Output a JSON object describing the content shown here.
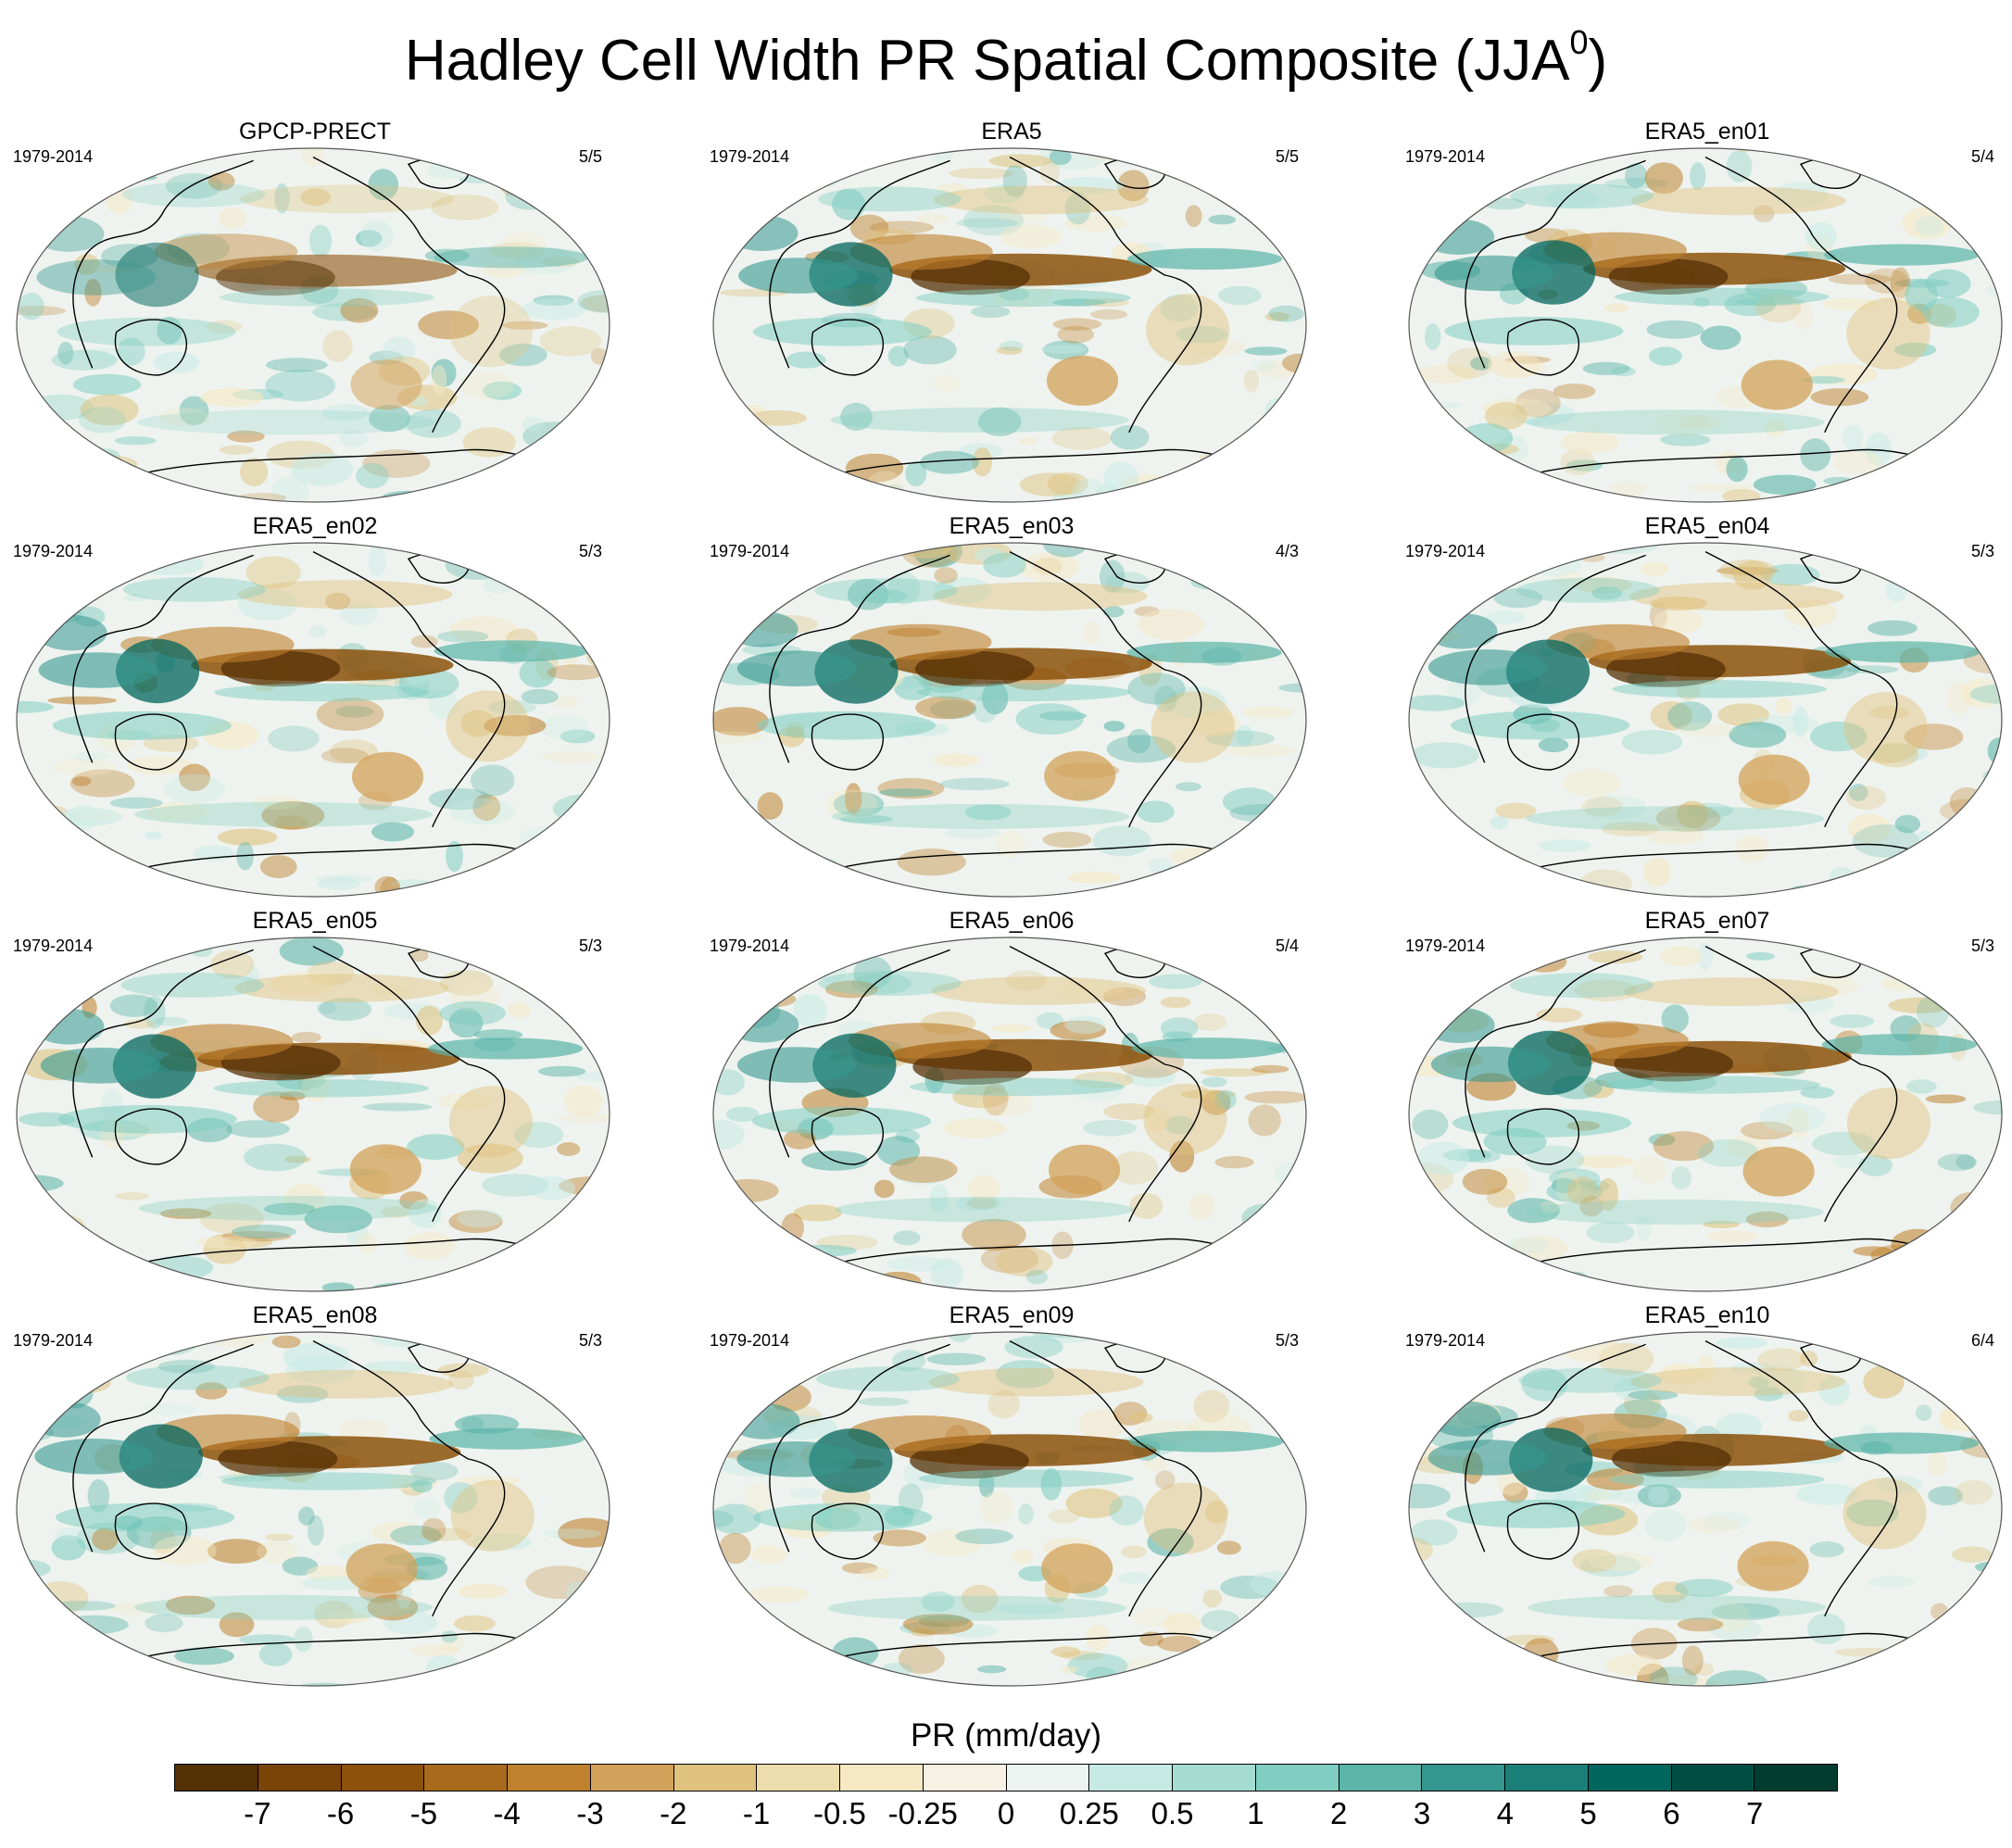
{
  "title": {
    "main": "Hadley Cell Width PR Spatial Composite (JJA",
    "sup": "0",
    "close": ")"
  },
  "panels": [
    {
      "title": "GPCP-PRECT",
      "years": "1979-2014",
      "ratio": "5/5"
    },
    {
      "title": "ERA5",
      "years": "1979-2014",
      "ratio": "5/5"
    },
    {
      "title": "ERA5_en01",
      "years": "1979-2014",
      "ratio": "5/4"
    },
    {
      "title": "ERA5_en02",
      "years": "1979-2014",
      "ratio": "5/3"
    },
    {
      "title": "ERA5_en03",
      "years": "1979-2014",
      "ratio": "4/3"
    },
    {
      "title": "ERA5_en04",
      "years": "1979-2014",
      "ratio": "5/3"
    },
    {
      "title": "ERA5_en05",
      "years": "1979-2014",
      "ratio": "5/3"
    },
    {
      "title": "ERA5_en06",
      "years": "1979-2014",
      "ratio": "5/4"
    },
    {
      "title": "ERA5_en07",
      "years": "1979-2014",
      "ratio": "5/3"
    },
    {
      "title": "ERA5_en08",
      "years": "1979-2014",
      "ratio": "5/3"
    },
    {
      "title": "ERA5_en09",
      "years": "1979-2014",
      "ratio": "5/3"
    },
    {
      "title": "ERA5_en10",
      "years": "1979-2014",
      "ratio": "6/4"
    }
  ],
  "colorbar": {
    "label": "PR (mm/day)",
    "ticks": [
      "-7",
      "-6",
      "-5",
      "-4",
      "-3",
      "-2",
      "-1",
      "-0.5",
      "-0.25",
      "0",
      "0.25",
      "0.5",
      "1",
      "2",
      "3",
      "4",
      "5",
      "6",
      "7"
    ],
    "colors": [
      "#543005",
      "#7a4408",
      "#8c510a",
      "#a86a1c",
      "#bf812d",
      "#d3a25a",
      "#dfc27d",
      "#eddcac",
      "#f6e8c3",
      "#f7f1e4",
      "#ecf3f1",
      "#c7eae5",
      "#a5dcd1",
      "#80cdc1",
      "#5ab4a8",
      "#35978f",
      "#1c7f77",
      "#01665e",
      "#004d43",
      "#003c30"
    ]
  }
}
